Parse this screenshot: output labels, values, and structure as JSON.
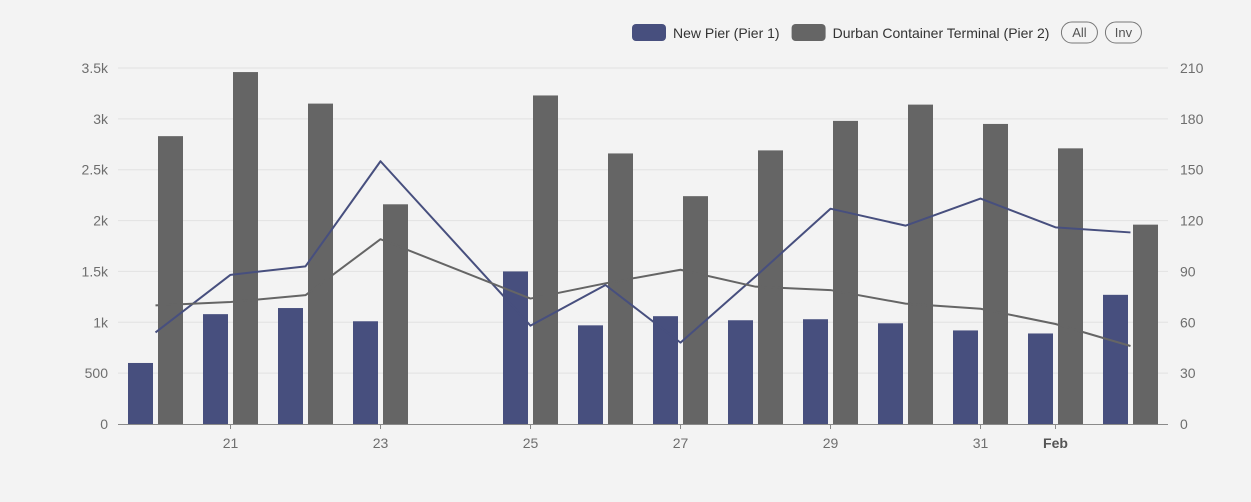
{
  "chart_data": {
    "type": "bar",
    "x_categories": [
      "",
      "21",
      "",
      "23",
      "",
      "25",
      "",
      "27",
      "",
      "29",
      "",
      "31",
      "Feb",
      ""
    ],
    "y_left": {
      "min": 0,
      "max": 3500,
      "ticks": [
        0,
        500,
        1000,
        1500,
        2000,
        2500,
        3000,
        3500
      ],
      "tick_labels": [
        "0",
        "500",
        "1k",
        "1.5k",
        "2k",
        "2.5k",
        "3k",
        "3.5k"
      ]
    },
    "y_right": {
      "min": 0,
      "max": 210,
      "ticks": [
        0,
        30,
        60,
        90,
        120,
        150,
        180,
        210
      ],
      "tick_labels": [
        "0",
        "30",
        "60",
        "90",
        "120",
        "150",
        "180",
        "210"
      ]
    },
    "series": [
      {
        "name": "New Pier (Pier 1)",
        "type": "bar",
        "axis": "left",
        "color": "#474f7e",
        "values": [
          600,
          1080,
          1140,
          1010,
          null,
          1500,
          970,
          1060,
          1020,
          1030,
          990,
          920,
          890,
          1270
        ]
      },
      {
        "name": "Durban Container Terminal (Pier 2)",
        "type": "bar",
        "axis": "left",
        "color": "#656565",
        "values": [
          2830,
          3460,
          3150,
          2160,
          null,
          3230,
          2660,
          2240,
          2690,
          2980,
          3140,
          2950,
          2710,
          1960
        ]
      },
      {
        "type": "line",
        "axis": "right",
        "color": "#474f7e",
        "values": [
          54,
          88,
          93,
          155,
          null,
          58,
          82,
          48,
          87,
          127,
          117,
          133,
          116,
          113
        ]
      },
      {
        "type": "line",
        "axis": "right",
        "color": "#656565",
        "values": [
          70,
          72,
          76,
          109,
          null,
          74,
          83,
          91,
          81,
          79,
          71,
          68,
          59,
          46
        ]
      }
    ],
    "legend": {
      "position": "top-right",
      "buttons": [
        "All",
        "Inv"
      ]
    },
    "grid": true
  }
}
